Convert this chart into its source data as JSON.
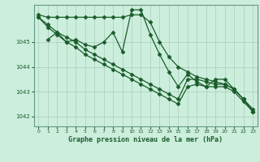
{
  "background_color": "#cceedd",
  "grid_color": "#aaccbb",
  "line_color": "#1a5c2a",
  "marker_color": "#1a5c2a",
  "xlabel": "Graphe pression niveau de la mer (hPa)",
  "xlim": [
    -0.5,
    23.5
  ],
  "ylim": [
    1041.6,
    1046.5
  ],
  "yticks": [
    1042,
    1043,
    1044,
    1045
  ],
  "xticks": [
    0,
    1,
    2,
    3,
    4,
    5,
    6,
    7,
    8,
    9,
    10,
    11,
    12,
    13,
    14,
    15,
    16,
    17,
    18,
    19,
    20,
    21,
    22,
    23
  ],
  "series": [
    {
      "x": [
        0,
        1,
        2,
        3,
        4,
        5,
        6,
        7,
        8,
        9,
        10,
        11,
        12,
        13,
        14,
        15,
        16,
        17,
        18,
        19,
        20,
        21,
        22,
        23
      ],
      "y": [
        1046.1,
        1046.0,
        1046.0,
        1046.0,
        1046.0,
        1046.0,
        1046.0,
        1046.0,
        1046.0,
        1046.0,
        1046.1,
        1046.1,
        1045.8,
        1045.0,
        1044.4,
        1044.0,
        1043.8,
        1043.6,
        1043.5,
        1043.4,
        1043.3,
        1043.1,
        1042.7,
        1042.2
      ]
    },
    {
      "x": [
        1,
        2,
        3,
        4,
        5,
        6,
        7,
        8,
        9,
        10,
        11,
        12,
        13,
        14,
        15,
        16,
        17,
        18,
        19,
        20,
        21,
        22,
        23
      ],
      "y": [
        1045.1,
        1045.4,
        1045.0,
        1045.1,
        1044.9,
        1044.8,
        1045.0,
        1045.4,
        1044.6,
        1046.3,
        1046.3,
        1045.3,
        1044.5,
        1043.8,
        1043.2,
        1043.7,
        1043.4,
        1043.2,
        1043.5,
        1043.5,
        1043.1,
        1042.7,
        1042.2
      ]
    },
    {
      "x": [
        0,
        1,
        2,
        3,
        4,
        5,
        6,
        7,
        8,
        9,
        10,
        11,
        12,
        13,
        14,
        15,
        16,
        17,
        18,
        19,
        20,
        21,
        22,
        23
      ],
      "y": [
        1046.0,
        1045.7,
        1045.4,
        1045.2,
        1045.0,
        1044.7,
        1044.5,
        1044.3,
        1044.1,
        1043.9,
        1043.7,
        1043.5,
        1043.3,
        1043.1,
        1042.9,
        1042.7,
        1043.5,
        1043.5,
        1043.4,
        1043.3,
        1043.3,
        1043.1,
        1042.7,
        1042.3
      ]
    },
    {
      "x": [
        0,
        1,
        2,
        3,
        4,
        5,
        6,
        7,
        8,
        9,
        10,
        11,
        12,
        13,
        14,
        15,
        16,
        17,
        18,
        19,
        20,
        21,
        22,
        23
      ],
      "y": [
        1046.0,
        1045.6,
        1045.3,
        1045.0,
        1044.8,
        1044.5,
        1044.3,
        1044.1,
        1043.9,
        1043.7,
        1043.5,
        1043.3,
        1043.1,
        1042.9,
        1042.7,
        1042.5,
        1043.2,
        1043.3,
        1043.2,
        1043.2,
        1043.2,
        1043.0,
        1042.6,
        1042.2
      ]
    }
  ]
}
